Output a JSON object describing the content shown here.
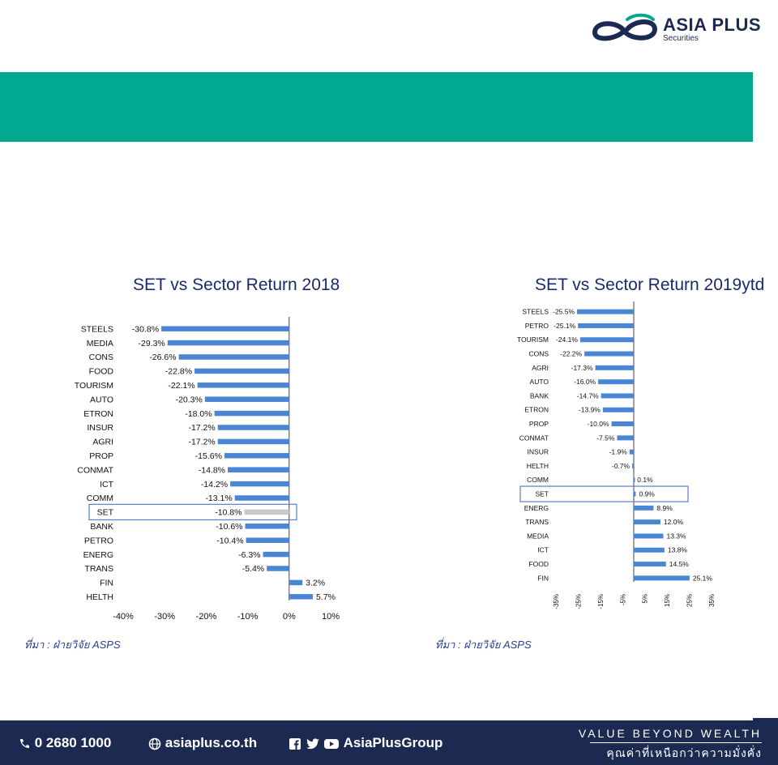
{
  "brand": {
    "name": "ASIA PLUS",
    "subtitle": "Securities",
    "colors": {
      "navy": "#1c2a52",
      "teal": "#00a98f",
      "bar": "#4a86d4",
      "highlight": "#c8c8c8"
    }
  },
  "charts": {
    "left_source": "ที่มา : ฝ่ายวิจัย ASPS",
    "right_source": "ที่มา : ฝ่ายวิจัย ASPS"
  },
  "chart_data": [
    {
      "type": "bar",
      "orientation": "horizontal",
      "title": "SET vs Sector Return 2018",
      "categories": [
        "STEELS",
        "MEDIA",
        "CONS",
        "FOOD",
        "TOURISM",
        "AUTO",
        "ETRON",
        "INSUR",
        "AGRI",
        "PROP",
        "CONMAT",
        "ICT",
        "COMM",
        "SET",
        "BANK",
        "PETRO",
        "ENERG",
        "TRANS",
        "FIN",
        "HELTH"
      ],
      "values": [
        -30.8,
        -29.3,
        -26.6,
        -22.8,
        -22.1,
        -20.3,
        -18.0,
        -17.2,
        -17.2,
        -15.6,
        -14.8,
        -14.2,
        -13.1,
        -10.8,
        -10.6,
        -10.4,
        -6.3,
        -5.4,
        3.2,
        5.7
      ],
      "labels": [
        "-30.8%",
        "-29.3%",
        "-26.6%",
        "-22.8%",
        "-22.1%",
        "-20.3%",
        "-18.0%",
        "-17.2%",
        "-17.2%",
        "-15.6%",
        "-14.8%",
        "-14.2%",
        "-13.1%",
        "-10.8%",
        "-10.6%",
        "-10.4%",
        "-6.3%",
        "-5.4%",
        "3.2%",
        "5.7%"
      ],
      "highlight": "SET",
      "xlim": [
        -40,
        10
      ],
      "xticks": [
        "-40%",
        "-30%",
        "-20%",
        "-10%",
        "0%",
        "10%"
      ]
    },
    {
      "type": "bar",
      "orientation": "horizontal",
      "title": "SET vs Sector Return 2019ytd",
      "categories": [
        "STEELS",
        "PETRO",
        "TOURISM",
        "CONS",
        "AGRI",
        "AUTO",
        "BANK",
        "ETRON",
        "PROP",
        "CONMAT",
        "INSUR",
        "HELTH",
        "COMM",
        "SET",
        "ENERG",
        "TRANS",
        "MEDIA",
        "ICT",
        "FOOD",
        "FIN"
      ],
      "values": [
        -25.5,
        -25.1,
        -24.1,
        -22.2,
        -17.3,
        -16.0,
        -14.7,
        -13.9,
        -10.0,
        -7.5,
        -1.9,
        -0.7,
        0.1,
        0.9,
        8.9,
        12.0,
        13.3,
        13.8,
        14.5,
        25.1
      ],
      "labels": [
        "-25.5%",
        "-25.1%",
        "-24.1%",
        "-22.2%",
        "-17.3%",
        "-16.0%",
        "-14.7%",
        "-13.9%",
        "-10.0%",
        "-7.5%",
        "-1.9%",
        "-0.7%",
        "0.1%",
        "0.9%",
        "8.9%",
        "12.0%",
        "13.3%",
        "13.8%",
        "14.5%",
        "25.1%"
      ],
      "highlight": "SET",
      "xlim": [
        -35,
        35
      ],
      "xticks": [
        "-35%",
        "-25%",
        "-15%",
        "-5%",
        "5%",
        "15%",
        "25%",
        "35%"
      ]
    }
  ],
  "footer": {
    "phone": "0 2680 1000",
    "website": "asiaplus.co.th",
    "social": "AsiaPlusGroup",
    "tagline_en": "VALUE BEYOND WEALTH",
    "tagline_th": "คุณค่าที่เหนือกว่าความมั่งคั่ง"
  }
}
